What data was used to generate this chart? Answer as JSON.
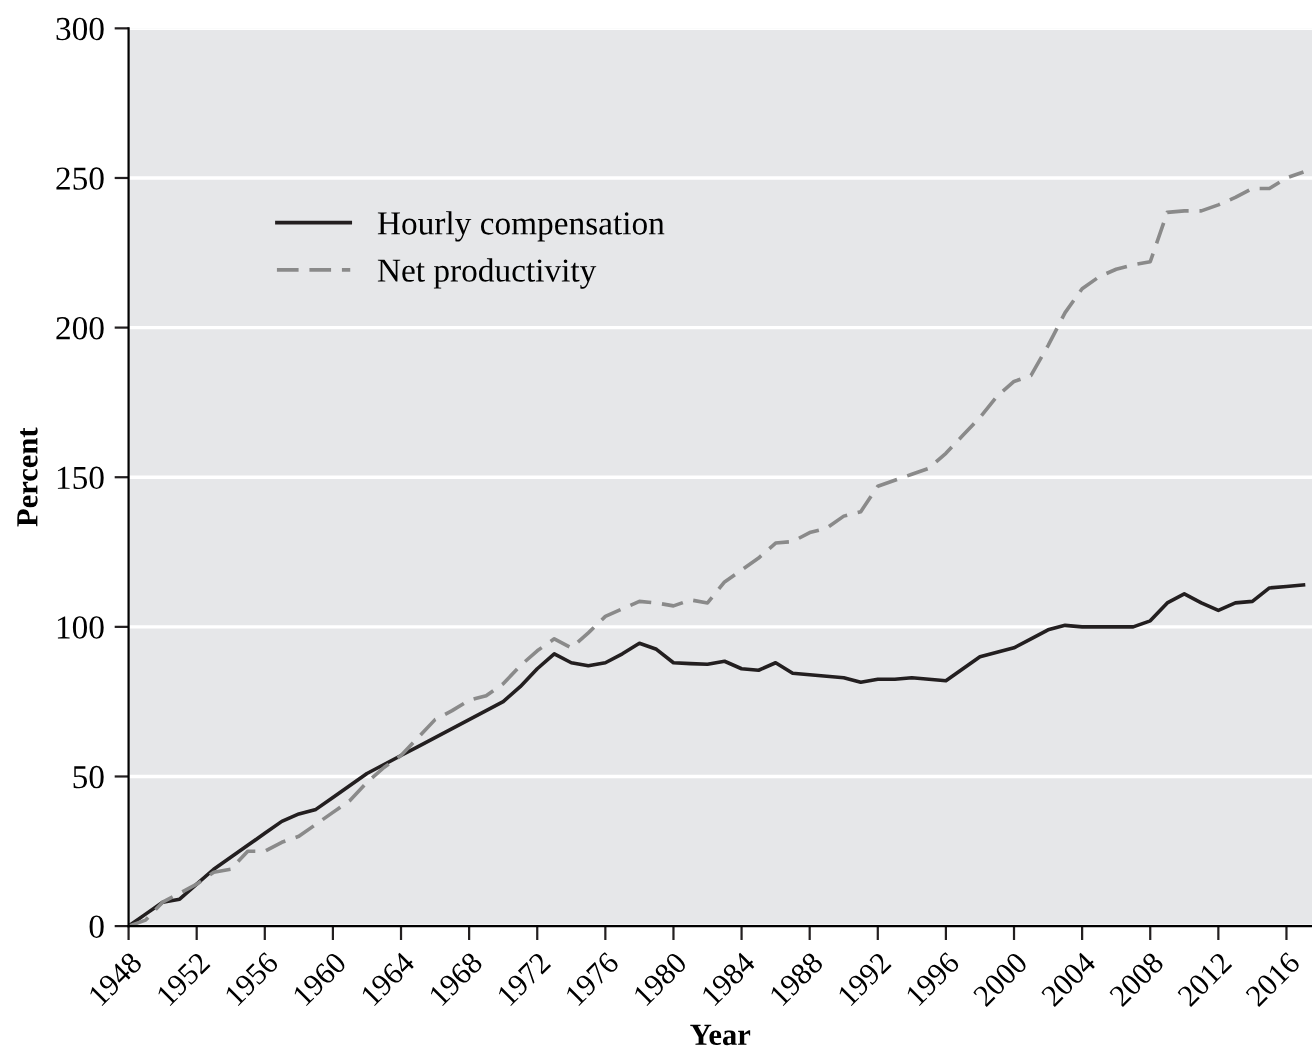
{
  "chart_data": {
    "type": "line",
    "xlabel": "Year",
    "ylabel": "Percent",
    "x": [
      1948,
      1949,
      1950,
      1951,
      1952,
      1953,
      1954,
      1955,
      1956,
      1957,
      1958,
      1959,
      1960,
      1961,
      1962,
      1963,
      1964,
      1965,
      1966,
      1967,
      1968,
      1969,
      1970,
      1971,
      1972,
      1973,
      1974,
      1975,
      1976,
      1977,
      1978,
      1979,
      1980,
      1981,
      1982,
      1983,
      1984,
      1985,
      1986,
      1987,
      1988,
      1989,
      1990,
      1991,
      1992,
      1993,
      1994,
      1995,
      1996,
      1997,
      1998,
      1999,
      2000,
      2001,
      2002,
      2003,
      2004,
      2005,
      2006,
      2007,
      2008,
      2009,
      2010,
      2011,
      2012,
      2013,
      2014,
      2015,
      2016,
      2017
    ],
    "series": [
      {
        "name": "Hourly compensation",
        "color": "#231f20",
        "line_style": "solid",
        "values": [
          0,
          4,
          8,
          9,
          14,
          19,
          23,
          27,
          31,
          35,
          37.5,
          39,
          43,
          47,
          51,
          54,
          57,
          60,
          63,
          66,
          69,
          72,
          75,
          80,
          86,
          91,
          88,
          87,
          88,
          91,
          94.5,
          92.5,
          88,
          87.7,
          87.5,
          88.5,
          86,
          85.5,
          88,
          84.5,
          84,
          83.5,
          83,
          81.5,
          82.5,
          82.5,
          83,
          82.5,
          82,
          86,
          90,
          91.5,
          93,
          96,
          99,
          100.5,
          100,
          100,
          100,
          100,
          102,
          108,
          111,
          108,
          105.5,
          108,
          108.5,
          113,
          113.5,
          114
        ]
      },
      {
        "name": "Net productivity",
        "color": "#8a8a8a",
        "line_style": "dashed",
        "values": [
          0,
          2,
          8,
          11,
          14,
          18,
          19,
          25,
          25,
          28,
          30,
          34,
          38,
          42,
          48,
          53,
          57,
          63,
          69,
          72,
          75.5,
          77,
          81,
          87,
          92,
          96,
          93,
          98,
          103.5,
          106,
          108.5,
          108,
          107,
          109,
          108,
          115,
          119,
          123,
          128,
          128.5,
          131.5,
          133,
          137,
          138.5,
          147,
          149,
          151,
          153,
          158,
          164,
          170,
          177,
          182,
          184,
          194,
          205,
          213,
          217,
          219.5,
          221,
          222,
          238.5,
          239,
          239,
          241,
          243.5,
          246.5,
          246.5,
          250,
          252
        ]
      }
    ],
    "xlim": [
      1948,
      2017.5
    ],
    "xticks": [
      1948,
      1952,
      1956,
      1960,
      1964,
      1968,
      1972,
      1976,
      1980,
      1984,
      1988,
      1992,
      1996,
      2000,
      2004,
      2008,
      2012,
      2016
    ],
    "ylim": [
      0,
      300
    ],
    "yticks": [
      0,
      50,
      100,
      150,
      200,
      250,
      300
    ],
    "grid": "y",
    "legend": "top left",
    "marker": "none"
  }
}
